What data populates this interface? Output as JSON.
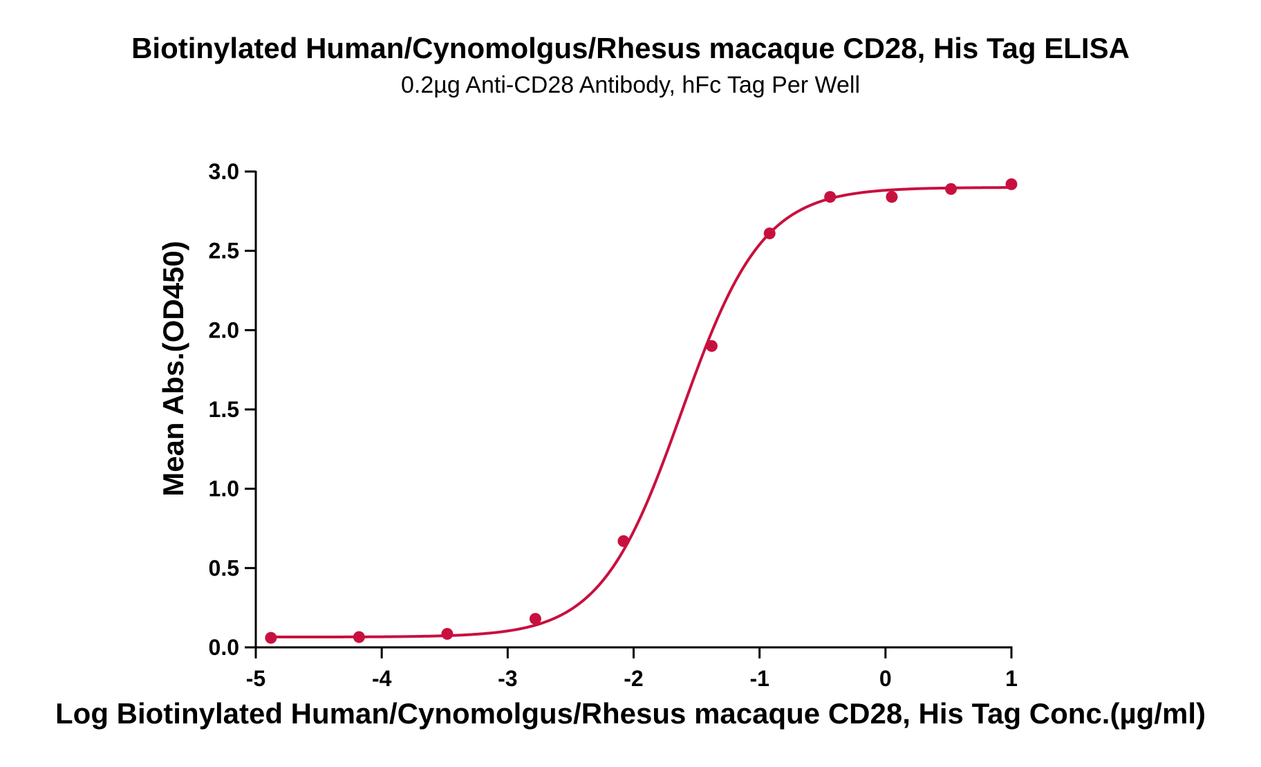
{
  "chart_data": {
    "type": "scatter",
    "title": "Biotinylated Human/Cynomolgus/Rhesus macaque CD28, His Tag ELISA",
    "subtitle": "0.2µg Anti-CD28 Antibody, hFc Tag Per Well",
    "xlabel": "Log Biotinylated Human/Cynomolgus/Rhesus macaque CD28, His Tag Conc.(µg/ml)",
    "ylabel": "Mean Abs.(OD450)",
    "xlim": [
      -5,
      1
    ],
    "ylim": [
      0,
      3
    ],
    "x_ticks": [
      -5,
      -4,
      -3,
      -2,
      -1,
      0,
      1
    ],
    "x_tick_labels": [
      "-5",
      "-4",
      "-3",
      "-2",
      "-1",
      "0",
      "1"
    ],
    "y_ticks": [
      0,
      0.5,
      1,
      1.5,
      2,
      2.5,
      3
    ],
    "y_tick_labels": [
      "0.0",
      "0.5",
      "1.0",
      "1.5",
      "2.0",
      "2.5",
      "3.0"
    ],
    "grid": false,
    "series": [
      {
        "color": "#c8103e",
        "points": [
          {
            "x": -4.88,
            "y": 0.06
          },
          {
            "x": -4.18,
            "y": 0.065
          },
          {
            "x": -3.48,
            "y": 0.085
          },
          {
            "x": -2.78,
            "y": 0.18
          },
          {
            "x": -2.08,
            "y": 0.67
          },
          {
            "x": -1.38,
            "y": 1.9
          },
          {
            "x": -0.92,
            "y": 2.61
          },
          {
            "x": -0.44,
            "y": 2.84
          },
          {
            "x": 0.05,
            "y": 2.84
          },
          {
            "x": 0.52,
            "y": 2.89
          },
          {
            "x": 1.0,
            "y": 2.92
          }
        ],
        "fit": {
          "model": "4PL",
          "bottom": 0.065,
          "top": 2.9,
          "logEC50": -1.62,
          "hill": 1.35
        }
      }
    ]
  }
}
